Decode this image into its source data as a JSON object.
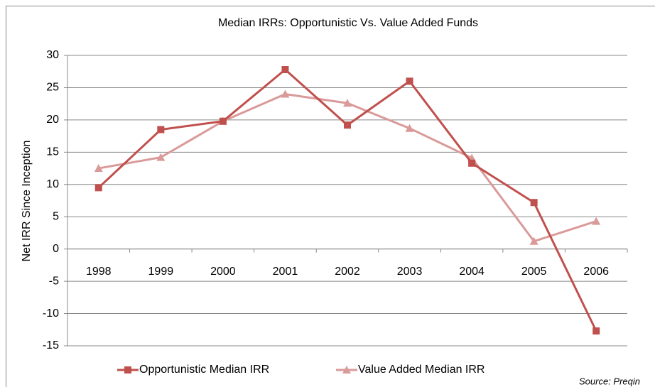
{
  "chart_data": {
    "type": "line",
    "title": "Median IRRs: Opportunistic Vs. Value Added Funds",
    "y_label": "Net IRR Since Inception",
    "source": "Source: Preqin",
    "categories": [
      "1998",
      "1999",
      "2000",
      "2001",
      "2002",
      "2003",
      "2004",
      "2005",
      "2006"
    ],
    "series": [
      {
        "name": "Opportunistic Median IRR",
        "color": "#c0504d",
        "marker": "square",
        "values": [
          9.5,
          18.5,
          19.8,
          27.8,
          19.2,
          26.0,
          13.3,
          7.2,
          -12.7
        ]
      },
      {
        "name": "Value Added Median IRR",
        "color": "#d99a99",
        "marker": "triangle",
        "values": [
          12.5,
          14.2,
          19.8,
          24.0,
          22.6,
          18.7,
          14.1,
          1.2,
          4.3
        ]
      }
    ],
    "ylim": [
      -15,
      30
    ],
    "yticks": [
      -15,
      -10,
      -5,
      0,
      5,
      10,
      15,
      20,
      25,
      30
    ],
    "grid": true,
    "legend": "bottom"
  }
}
